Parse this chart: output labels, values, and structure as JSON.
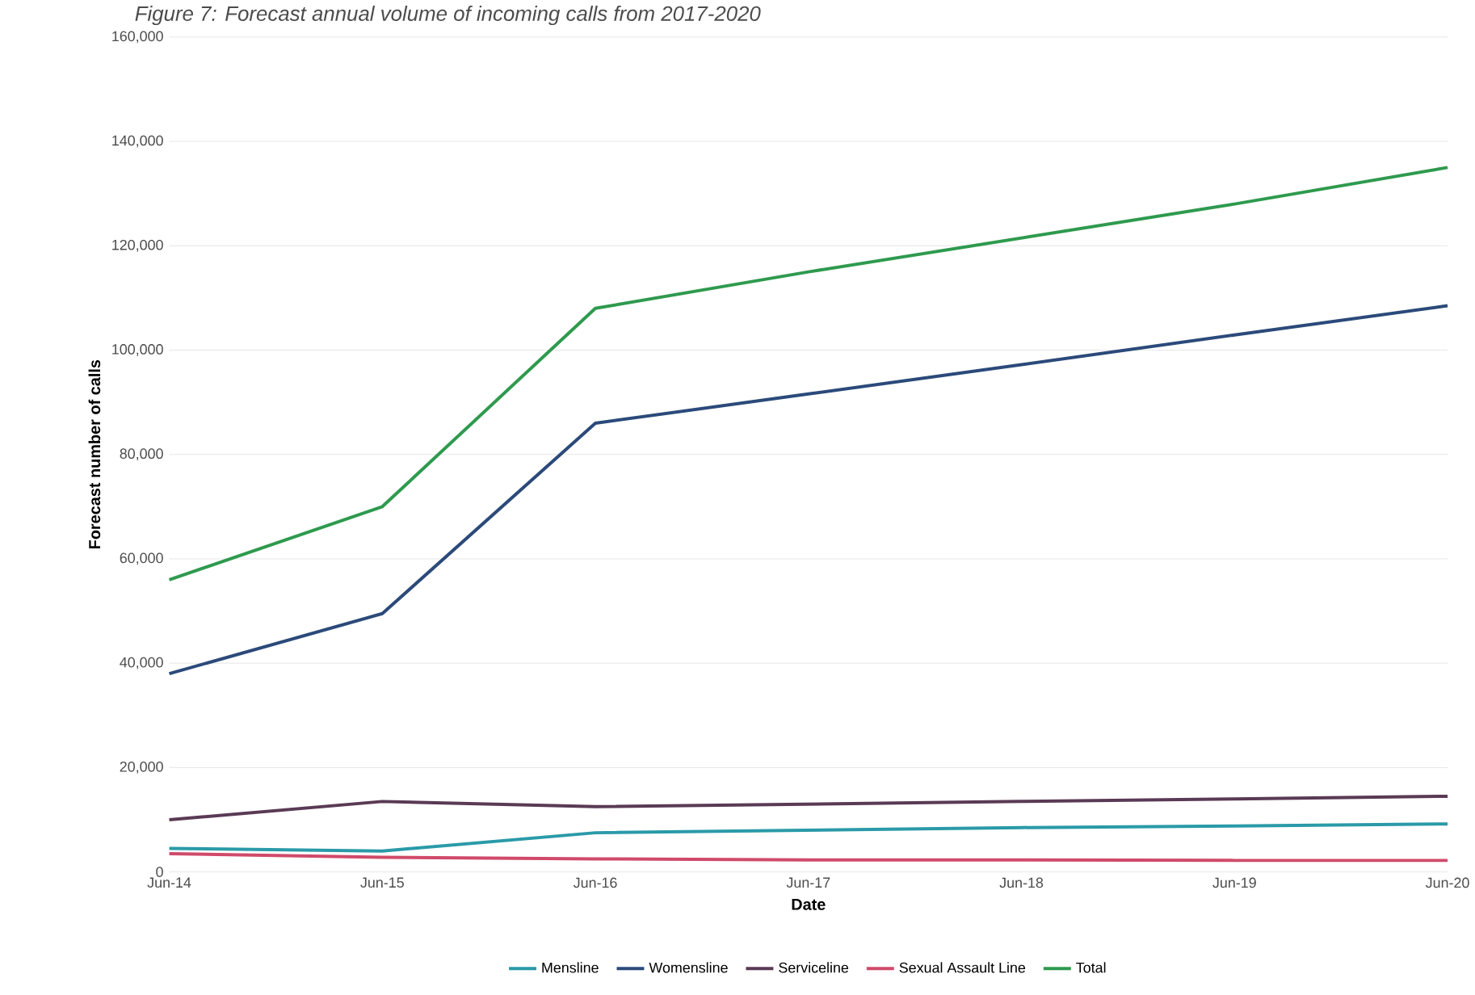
{
  "chart_data": {
    "type": "line",
    "title": "Figure 7: Forecast annual volume of incoming calls from 2017-2020",
    "xlabel": "Date",
    "ylabel": "Forecast number of calls",
    "categories": [
      "Jun-14",
      "Jun-15",
      "Jun-16",
      "Jun-17",
      "Jun-18",
      "Jun-19",
      "Jun-20"
    ],
    "series": [
      {
        "name": "Mensline",
        "color": "#2a9aa8",
        "values": [
          4500,
          4000,
          7500,
          8000,
          8500,
          8800,
          9200
        ]
      },
      {
        "name": "Womensline",
        "color": "#2b4a7a",
        "values": [
          38000,
          49500,
          86000,
          91600,
          97200,
          102900,
          108500
        ]
      },
      {
        "name": "Serviceline",
        "color": "#5a3a55",
        "values": [
          10000,
          13500,
          12500,
          13000,
          13500,
          14000,
          14500
        ]
      },
      {
        "name": "Sexual Assault Line",
        "color": "#d04a6a",
        "values": [
          3500,
          2800,
          2500,
          2300,
          2300,
          2200,
          2200
        ]
      },
      {
        "name": "Total",
        "color": "#2e9a4e",
        "values": [
          56000,
          70000,
          108000,
          115000,
          121500,
          128000,
          135000
        ]
      }
    ],
    "ylim": [
      0,
      160000
    ],
    "yticks": [
      0,
      {
        "value": 20000,
        "label": "20,000"
      },
      {
        "value": 40000,
        "label": "40,000"
      },
      {
        "value": 60000,
        "label": "60,000"
      },
      {
        "value": 80000,
        "label": "80,000"
      },
      {
        "value": 100000,
        "label": "100,000"
      },
      {
        "value": 120000,
        "label": "120,000"
      },
      {
        "value": 140000,
        "label": "140,000"
      },
      {
        "value": 160000,
        "label": "160,000"
      }
    ],
    "grid": "y",
    "legend": "bottom",
    "marker": "none",
    "line_style": "solid"
  }
}
